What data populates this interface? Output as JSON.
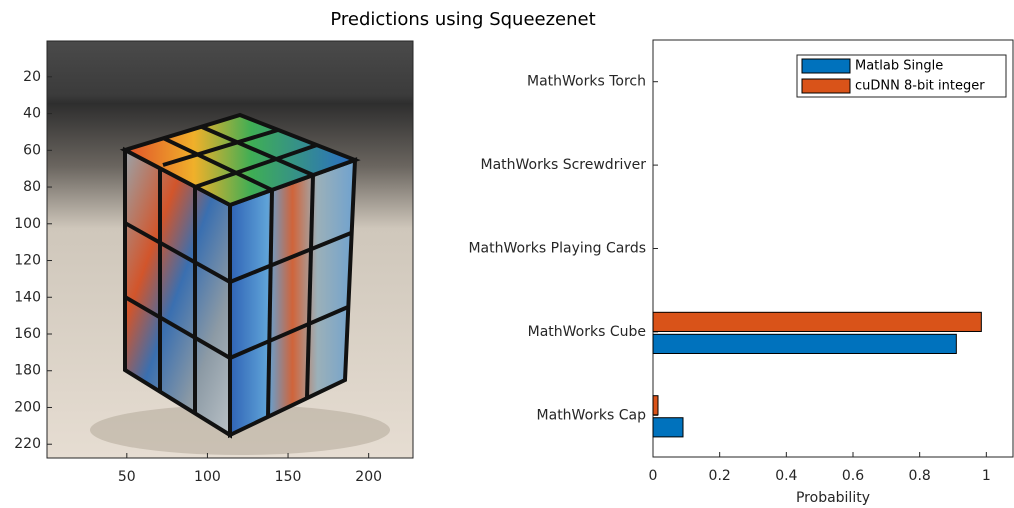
{
  "title": "Predictions using Squeezenet",
  "chart_data": [
    {
      "type": "image",
      "xlim": [
        0.5,
        227.5
      ],
      "ylim": [
        0.5,
        227.5
      ],
      "xticks": [
        50,
        100,
        150,
        200
      ],
      "yticks": [
        20,
        40,
        60,
        80,
        100,
        120,
        140,
        160,
        180,
        200,
        220
      ]
    },
    {
      "type": "barh",
      "xlabel": "Probability",
      "categories": [
        "MathWorks Cap",
        "MathWorks Cube",
        "MathWorks Playing Cards",
        "MathWorks Screwdriver",
        "MathWorks Torch"
      ],
      "series": [
        {
          "name": "Matlab Single",
          "color": "#0072bd",
          "values": [
            0.09,
            0.91,
            0,
            0,
            0
          ]
        },
        {
          "name": "cuDNN 8-bit integer",
          "color": "#d95319",
          "values": [
            0.015,
            0.985,
            0,
            0,
            0
          ]
        }
      ],
      "xlim": [
        0,
        1.08
      ],
      "xticks": [
        0,
        0.2,
        0.4,
        0.6,
        0.8,
        1
      ],
      "legend": "upper right"
    }
  ]
}
